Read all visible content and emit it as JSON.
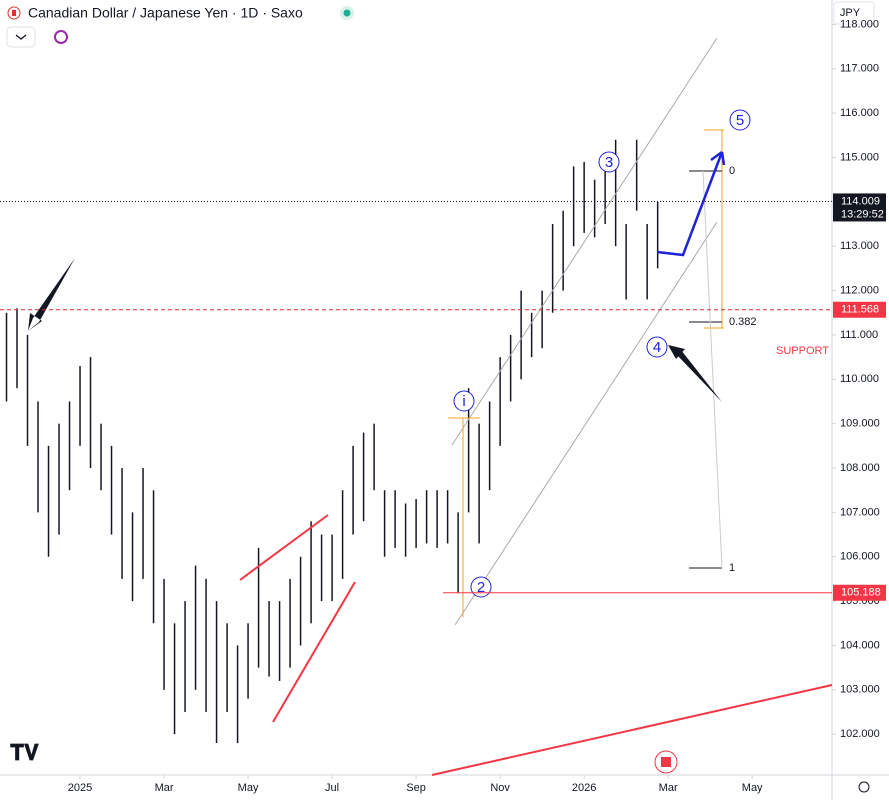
{
  "chart_data": {
    "type": "ohlc",
    "title": "Canadian Dollar / Japanese Yen · 1D · Saxo",
    "currency": "JPY",
    "color": "#131722",
    "x": [
      -1.75,
      -1.5,
      -1.25,
      -1.0,
      -0.75,
      -0.5,
      -0.25,
      0,
      0.25,
      0.5,
      0.75,
      1.0,
      1.25,
      1.5,
      1.75,
      2.0,
      2.25,
      2.5,
      2.75,
      3.0,
      3.25,
      3.5,
      3.75,
      4.0,
      4.25,
      4.5,
      4.75,
      5.0,
      5.25,
      5.5,
      5.75,
      6.0,
      6.25,
      6.5,
      6.75,
      7.0,
      7.25,
      7.5,
      7.75,
      8.0,
      8.25,
      8.5,
      8.75,
      9.0,
      9.25,
      9.5,
      9.75,
      10.0,
      10.25,
      10.5,
      10.75,
      11.0,
      11.25,
      11.5,
      11.75,
      12.0,
      12.25,
      12.5,
      12.75,
      13.0,
      13.25,
      13.5,
      13.75
    ],
    "high": [
      111.5,
      111.6,
      111,
      109.5,
      108.5,
      109,
      109.5,
      110.3,
      110.5,
      109,
      108.5,
      108,
      107,
      108,
      107.5,
      105.5,
      104.5,
      105,
      105.8,
      105.5,
      105,
      104.5,
      104,
      104.5,
      106.2,
      105,
      105,
      105.5,
      106,
      106.8,
      106.5,
      106.5,
      107.5,
      108.5,
      108.8,
      109,
      107.5,
      107.5,
      107.2,
      107.3,
      107.5,
      107.5,
      107.5,
      107,
      109.8,
      109,
      109.5,
      110.5,
      111,
      112,
      111.5,
      112,
      113.5,
      113.8,
      114.8,
      114.9,
      114.5,
      114.8,
      115.4,
      113.5,
      115.4,
      113.5,
      114
    ],
    "low": [
      109.5,
      109.8,
      108.5,
      107,
      106,
      106.5,
      107.5,
      108.5,
      108,
      107.5,
      106.5,
      105.5,
      105,
      105.5,
      104.5,
      103,
      102,
      102.5,
      103,
      102.5,
      101.8,
      102.5,
      101.8,
      102.8,
      103.5,
      103.3,
      103.2,
      103.5,
      104,
      104.5,
      105,
      105,
      105.5,
      106.5,
      106.8,
      107.5,
      106,
      106.2,
      106,
      106.2,
      106.3,
      106.2,
      106.3,
      105.188,
      107,
      106.3,
      107.5,
      108.5,
      109.5,
      110,
      110.5,
      110.7,
      111.5,
      112,
      113,
      113.3,
      113.2,
      113.5,
      113,
      111.8,
      113.8,
      111.8,
      112.5
    ],
    "xlim": [
      -1.905,
      17.9
    ],
    "ylim": [
      101.08,
      118.55
    ],
    "xticks": [
      {
        "value": 0,
        "label": "2025"
      },
      {
        "value": 2,
        "label": "Mar"
      },
      {
        "value": 4,
        "label": "May"
      },
      {
        "value": 6,
        "label": "Jul"
      },
      {
        "value": 8,
        "label": "Sep"
      },
      {
        "value": 10,
        "label": "Nov"
      },
      {
        "value": 12,
        "label": "2026"
      },
      {
        "value": 14,
        "label": "Mar"
      },
      {
        "value": 16,
        "label": "May"
      }
    ],
    "yticks": [
      {
        "value": 102,
        "label": "102.000"
      },
      {
        "value": 103,
        "label": "103.000"
      },
      {
        "value": 104,
        "label": "104.000"
      },
      {
        "value": 105,
        "label": "105.000"
      },
      {
        "value": 106,
        "label": "106.000"
      },
      {
        "value": 107,
        "label": "107.000"
      },
      {
        "value": 108,
        "label": "108.000"
      },
      {
        "value": 109,
        "label": "109.000"
      },
      {
        "value": 110,
        "label": "110.000"
      },
      {
        "value": 111,
        "label": "111.000"
      },
      {
        "value": 112,
        "label": "112.000"
      },
      {
        "value": 113,
        "label": "113.000"
      },
      {
        "value": 114,
        "label": "114.000"
      },
      {
        "value": 115,
        "label": "115.000"
      },
      {
        "value": 116,
        "label": "116.000"
      },
      {
        "value": 117,
        "label": "117.000"
      },
      {
        "value": 118,
        "label": "118.000"
      }
    ],
    "last_price": 114.009,
    "countdown": "13:29:52",
    "support_level": 111.568,
    "support_label": "SUPPORT",
    "low_level": 105.188,
    "waves": [
      "i",
      "2",
      "3",
      "4",
      "5"
    ],
    "fib_labels": [
      "0",
      "0.382",
      "1"
    ]
  }
}
